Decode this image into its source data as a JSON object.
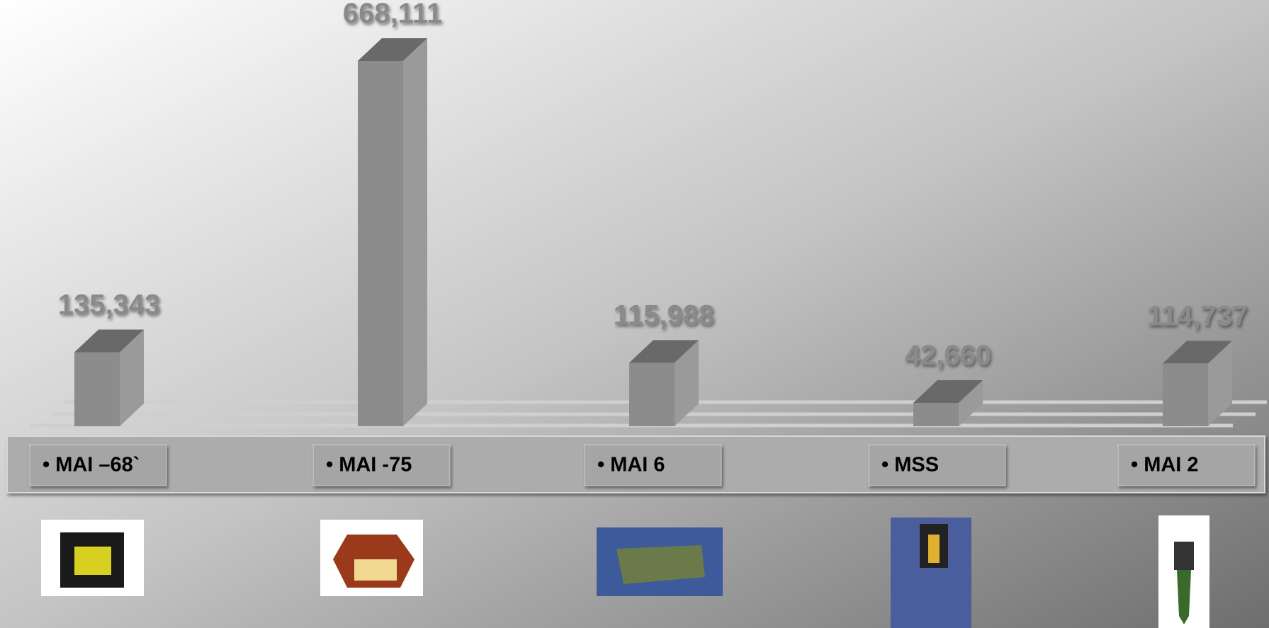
{
  "chart_data": {
    "type": "bar3d",
    "categories": [
      "• MAI –68`",
      "• MAI -75",
      "• MAI 6",
      "• MSS",
      "• MAI 2"
    ],
    "values": [
      135343,
      668111,
      115988,
      42660,
      114737
    ],
    "value_labels": [
      "135,343",
      "668,111",
      "115,988",
      "42,660",
      "114,737"
    ],
    "color": "#8c8c8c"
  }
}
